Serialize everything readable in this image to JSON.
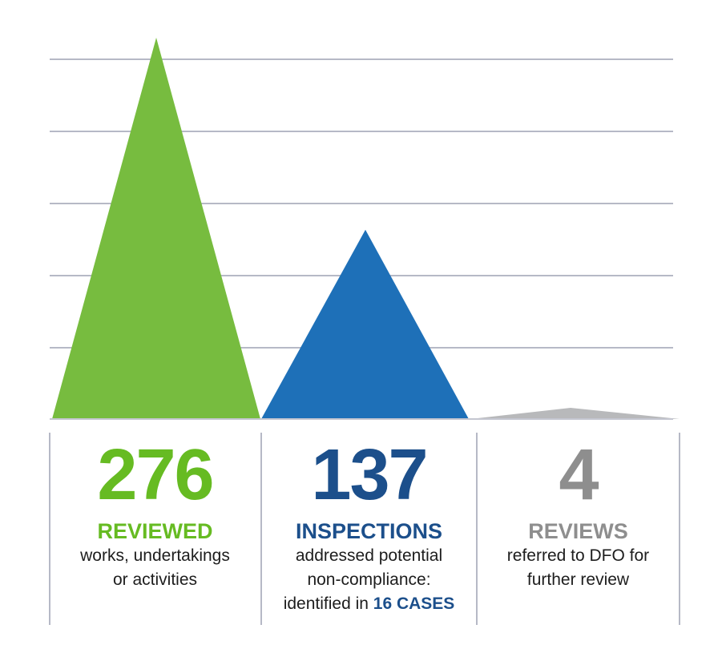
{
  "colors": {
    "green": "#77bc3f",
    "blue": "#1e70b8",
    "gray": "#b8b9bb",
    "green_text": "#66bb22",
    "navy_text": "#1c4f8b",
    "gray_text": "#8e8e8e",
    "gridline": "#b6b9c6"
  },
  "chart_data": {
    "type": "bar",
    "shape": "triangle",
    "categories": [
      "REVIEWED",
      "INSPECTIONS",
      "REVIEWS"
    ],
    "values": [
      276,
      137,
      4
    ],
    "ylim": [
      0,
      276
    ],
    "grid": true
  },
  "stats": [
    {
      "number": "276",
      "category": "REVIEWED",
      "description": [
        "works, undertakings",
        "or activities"
      ]
    },
    {
      "number": "137",
      "category": "INSPECTIONS",
      "description": [
        "addressed potential",
        "non-compliance:"
      ],
      "description_prefix": "identified in ",
      "highlight": "16 CASES"
    },
    {
      "number": "4",
      "category": "REVIEWS",
      "description": [
        "referred to DFO for",
        "further review"
      ]
    }
  ]
}
